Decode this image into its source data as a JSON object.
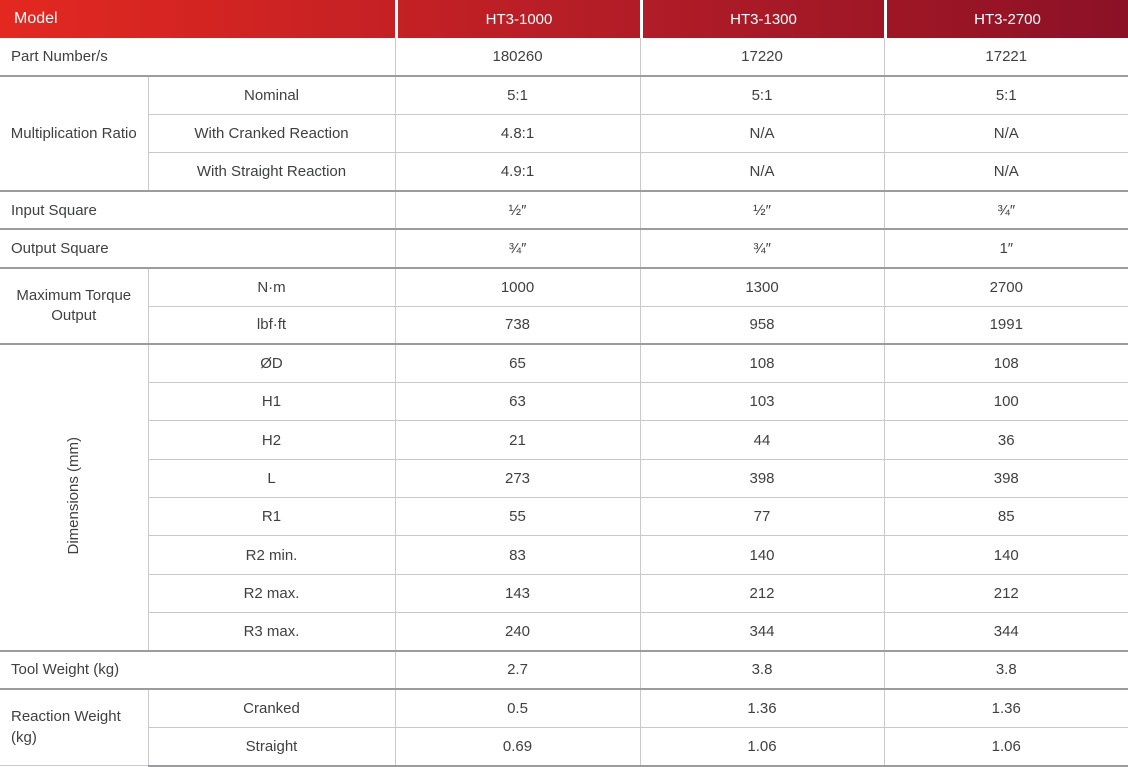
{
  "table": {
    "header": {
      "label": "Model",
      "cols": [
        "HT3-1000",
        "HT3-1300",
        "HT3-2700"
      ]
    },
    "sections": [
      {
        "label": "Part Number/s",
        "values": [
          "180260",
          "17220",
          "17221"
        ]
      },
      {
        "label": "Multiplication Ratio",
        "sub": [
          {
            "label": "Nominal",
            "values": [
              "5:1",
              "5:1",
              "5:1"
            ]
          },
          {
            "label": "With Cranked Reaction",
            "values": [
              "4.8:1",
              "N/A",
              "N/A"
            ]
          },
          {
            "label": "With Straight Reaction",
            "values": [
              "4.9:1",
              "N/A",
              "N/A"
            ]
          }
        ]
      },
      {
        "label": "Input Square",
        "values": [
          "½″",
          "½″",
          "¾″"
        ]
      },
      {
        "label": "Output Square",
        "values": [
          "¾″",
          "¾″",
          "1″"
        ]
      },
      {
        "label": "Maximum Torque Output",
        "sub": [
          {
            "label": "N·m",
            "values": [
              "1000",
              "1300",
              "2700"
            ]
          },
          {
            "label": "lbf·ft",
            "values": [
              "738",
              "958",
              "1991"
            ]
          }
        ]
      },
      {
        "label": "Dimensions (mm)",
        "sub": [
          {
            "label": "ØD",
            "values": [
              "65",
              "108",
              "108"
            ]
          },
          {
            "label": "H1",
            "values": [
              "63",
              "103",
              "100"
            ]
          },
          {
            "label": "H2",
            "values": [
              "21",
              "44",
              "36"
            ]
          },
          {
            "label": "L",
            "values": [
              "273",
              "398",
              "398"
            ]
          },
          {
            "label": "R1",
            "values": [
              "55",
              "77",
              "85"
            ]
          },
          {
            "label": "R2 min.",
            "values": [
              "83",
              "140",
              "140"
            ]
          },
          {
            "label": "R2 max.",
            "values": [
              "143",
              "212",
              "212"
            ]
          },
          {
            "label": "R3 max.",
            "values": [
              "240",
              "344",
              "344"
            ]
          }
        ]
      },
      {
        "label": "Tool Weight (kg)",
        "values": [
          "2.7",
          "3.8",
          "3.8"
        ]
      },
      {
        "label": "Reaction Weight (kg)",
        "sub": [
          {
            "label": "Cranked",
            "values": [
              "0.5",
              "1.36",
              "1.36"
            ]
          },
          {
            "label": "Straight",
            "values": [
              "0.69",
              "1.06",
              "1.06"
            ]
          }
        ]
      }
    ],
    "colors": {
      "header_gradient_start": "#e32820",
      "header_gradient_mid": "#b01c27",
      "header_gradient_end": "#8c1126",
      "header_text": "#ffffff",
      "body_text": "#3f4040",
      "grid_line": "#c9c9c9",
      "group_line": "#9c9ca0"
    }
  }
}
